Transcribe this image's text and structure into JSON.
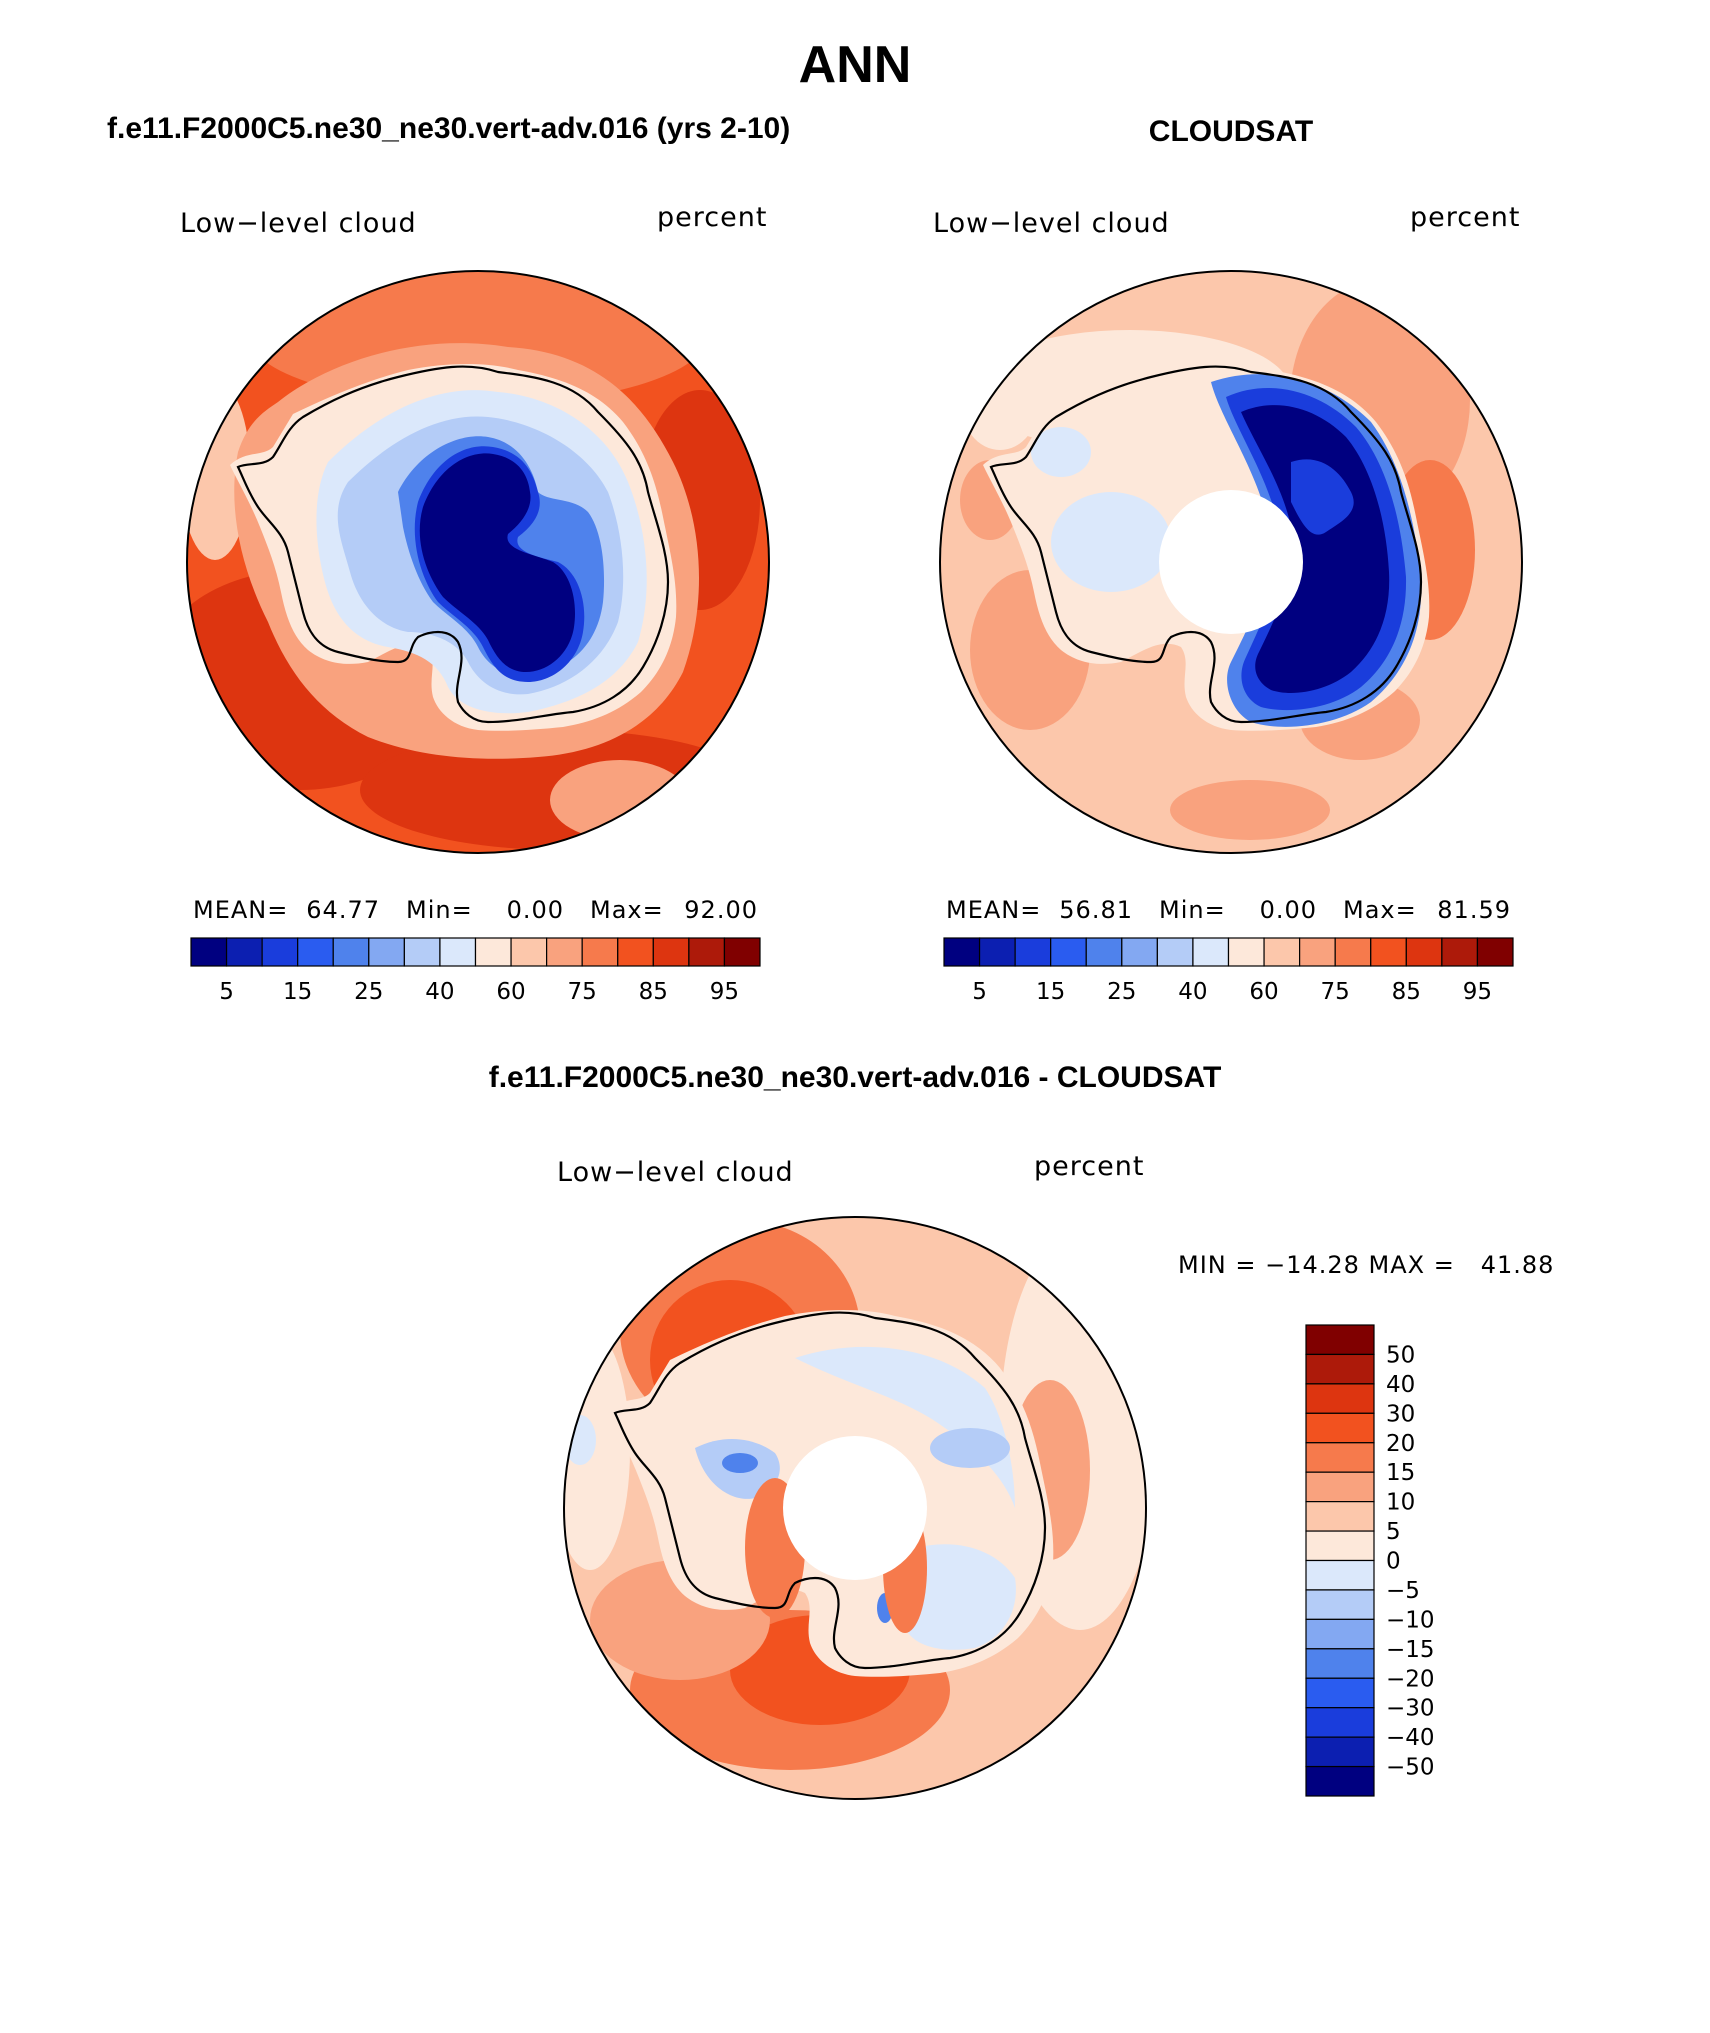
{
  "figure": {
    "title": "ANN"
  },
  "panels": [
    {
      "id": "model",
      "case_title": "f.e11.F2000C5.ne30_ne30.vert-adv.016 (yrs 2-10)",
      "variable_label": "Low−level cloud",
      "units": "percent",
      "stats": {
        "mean_label": "MEAN=",
        "mean": "64.77",
        "min_label": "Min=",
        "min": "0.00",
        "max_label": "Max=",
        "max": "92.00"
      },
      "colorbar_ticks": [
        "5",
        "15",
        "25",
        "40",
        "60",
        "75",
        "85",
        "95"
      ]
    },
    {
      "id": "obs",
      "case_title": "CLOUDSAT",
      "variable_label": "Low−level cloud",
      "units": "percent",
      "stats": {
        "mean_label": "MEAN=",
        "mean": "56.81",
        "min_label": "Min=",
        "min": "0.00",
        "max_label": "Max=",
        "max": "81.59"
      },
      "colorbar_ticks": [
        "5",
        "15",
        "25",
        "40",
        "60",
        "75",
        "85",
        "95"
      ]
    },
    {
      "id": "diff",
      "case_title": "f.e11.F2000C5.ne30_ne30.vert-adv.016 - CLOUDSAT",
      "variable_label": "Low−level cloud",
      "units": "percent",
      "stats_text": "MIN = −14.28 MAX =   41.88",
      "colorbar_ticks": [
        "50",
        "40",
        "30",
        "20",
        "15",
        "10",
        "5",
        "0",
        "−5",
        "−10",
        "−15",
        "−20",
        "−30",
        "−40",
        "−50"
      ]
    }
  ],
  "colors": {
    "abs_scale": [
      "#000080",
      "#0c1fb1",
      "#1a3ddc",
      "#2a5cf0",
      "#4f82ec",
      "#83a8f2",
      "#b4ccf7",
      "#dbe8fb",
      "#fde8da",
      "#fcc7ab",
      "#f9a27e",
      "#f67a4c",
      "#f2521f",
      "#dd3510",
      "#ad1a0a",
      "#800000"
    ],
    "diff_scale": [
      "#800000",
      "#ad1a0a",
      "#dd3510",
      "#f2521f",
      "#f67a4c",
      "#f9a27e",
      "#fcc7ab",
      "#fde8da",
      "#dbe8fb",
      "#b4ccf7",
      "#83a8f2",
      "#4f82ec",
      "#2a5cf0",
      "#1a3ddc",
      "#0c1fb1",
      "#000080"
    ]
  }
}
